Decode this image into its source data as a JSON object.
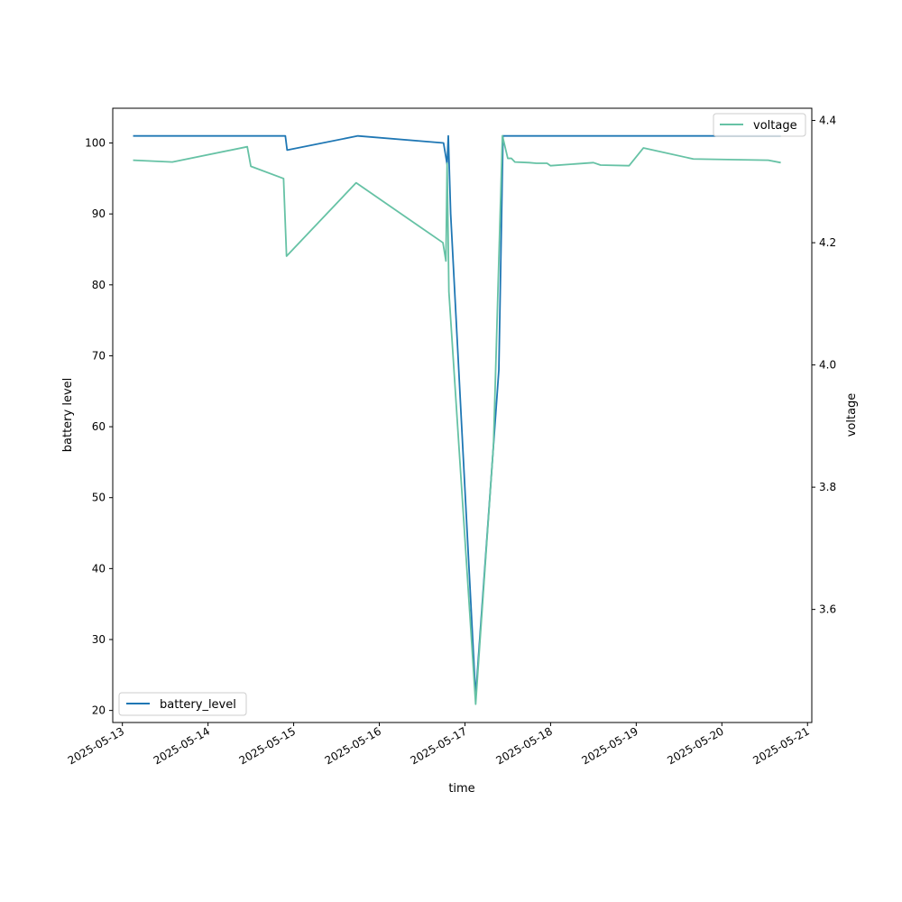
{
  "chart_data": {
    "type": "line",
    "xlabel": "time",
    "ylabel_left": "battery level",
    "ylabel_right": "voltage",
    "x_tick_labels": [
      "2025-05-13",
      "2025-05-14",
      "2025-05-15",
      "2025-05-16",
      "2025-05-17",
      "2025-05-18",
      "2025-05-19",
      "2025-05-20",
      "2025-05-21"
    ],
    "x_range": [
      "2025-05-12 21:18",
      "2025-05-21 01:12"
    ],
    "y_left": {
      "range": [
        18.3,
        104.9
      ],
      "ticks": [
        20,
        30,
        40,
        50,
        60,
        70,
        80,
        90,
        100
      ]
    },
    "y_right": {
      "range": [
        3.415,
        4.42
      ],
      "ticks": [
        3.6,
        3.8,
        4.0,
        4.2,
        4.4
      ],
      "tick_labels": [
        "3.6",
        "3.8",
        "4.0",
        "4.2",
        "4.4"
      ]
    },
    "grid": false,
    "series": [
      {
        "name": "battery_level",
        "axis": "left",
        "color": "#1f77b4",
        "legend": "lower-left",
        "points": [
          [
            "2025-05-13 03:00",
            101
          ],
          [
            "2025-05-14 21:40",
            101
          ],
          [
            "2025-05-14 22:10",
            99
          ],
          [
            "2025-05-15 18:00",
            101
          ],
          [
            "2025-05-16 18:00",
            100
          ],
          [
            "2025-05-16 19:00",
            97
          ],
          [
            "2025-05-16 19:20",
            101
          ],
          [
            "2025-05-16 20:00",
            90
          ],
          [
            "2025-05-17 03:00",
            22
          ],
          [
            "2025-05-17 09:30",
            68
          ],
          [
            "2025-05-17 10:40",
            101
          ],
          [
            "2025-05-20 16:30",
            101
          ]
        ]
      },
      {
        "name": "voltage",
        "axis": "right",
        "color": "#66c2a5",
        "legend": "upper-right",
        "points": [
          [
            "2025-05-13 03:00",
            4.335
          ],
          [
            "2025-05-13 14:00",
            4.332
          ],
          [
            "2025-05-14 11:00",
            4.357
          ],
          [
            "2025-05-14 12:00",
            4.325
          ],
          [
            "2025-05-14 21:10",
            4.305
          ],
          [
            "2025-05-14 22:00",
            4.178
          ],
          [
            "2025-05-15 17:30",
            4.298
          ],
          [
            "2025-05-16 17:50",
            4.2
          ],
          [
            "2025-05-16 18:40",
            4.17
          ],
          [
            "2025-05-16 19:00",
            4.33
          ],
          [
            "2025-05-16 19:30",
            4.12
          ],
          [
            "2025-05-17 03:00",
            3.445
          ],
          [
            "2025-05-17 08:00",
            3.87
          ],
          [
            "2025-05-17 10:30",
            4.375
          ],
          [
            "2025-05-17 12:00",
            4.338
          ],
          [
            "2025-05-17 13:00",
            4.338
          ],
          [
            "2025-05-17 14:00",
            4.332
          ],
          [
            "2025-05-17 18:00",
            4.331
          ],
          [
            "2025-05-17 20:00",
            4.33
          ],
          [
            "2025-05-17 23:00",
            4.33
          ],
          [
            "2025-05-18 00:00",
            4.326
          ],
          [
            "2025-05-18 12:00",
            4.331
          ],
          [
            "2025-05-18 14:00",
            4.327
          ],
          [
            "2025-05-18 22:00",
            4.326
          ],
          [
            "2025-05-19 02:00",
            4.355
          ],
          [
            "2025-05-19 16:00",
            4.337
          ],
          [
            "2025-05-20 13:00",
            4.335
          ],
          [
            "2025-05-20 16:30",
            4.331
          ]
        ]
      }
    ]
  }
}
